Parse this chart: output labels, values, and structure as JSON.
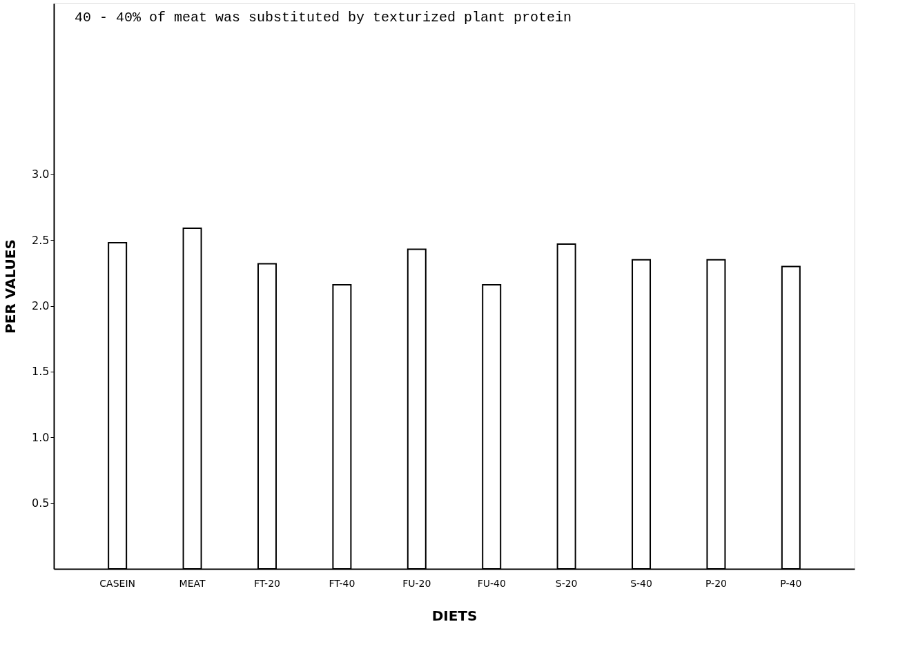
{
  "chart_data": {
    "type": "bar",
    "xlabel": "DIETS",
    "ylabel": "PER VALUES",
    "annotations": [
      "40   - 40% of meat was substituted by texturized plant protein"
    ],
    "categories": [
      "CASEIN",
      "MEAT",
      "FT-20",
      "FT-40",
      "FU-20",
      "FU-40",
      "S-20",
      "S-40",
      "P-20",
      "P-40"
    ],
    "values": [
      2.48,
      2.59,
      2.32,
      2.16,
      2.43,
      2.16,
      2.47,
      2.35,
      2.35,
      2.3
    ],
    "color": "#ffffff",
    "ylim": [
      0,
      4.3
    ],
    "yticks": [
      0.5,
      {
        "value": 1,
        "label": "1.0"
      },
      1.5,
      {
        "value": 2,
        "label": "2.0"
      },
      2.5,
      {
        "value": 3,
        "label": "3.0"
      }
    ],
    "grid": false
  }
}
